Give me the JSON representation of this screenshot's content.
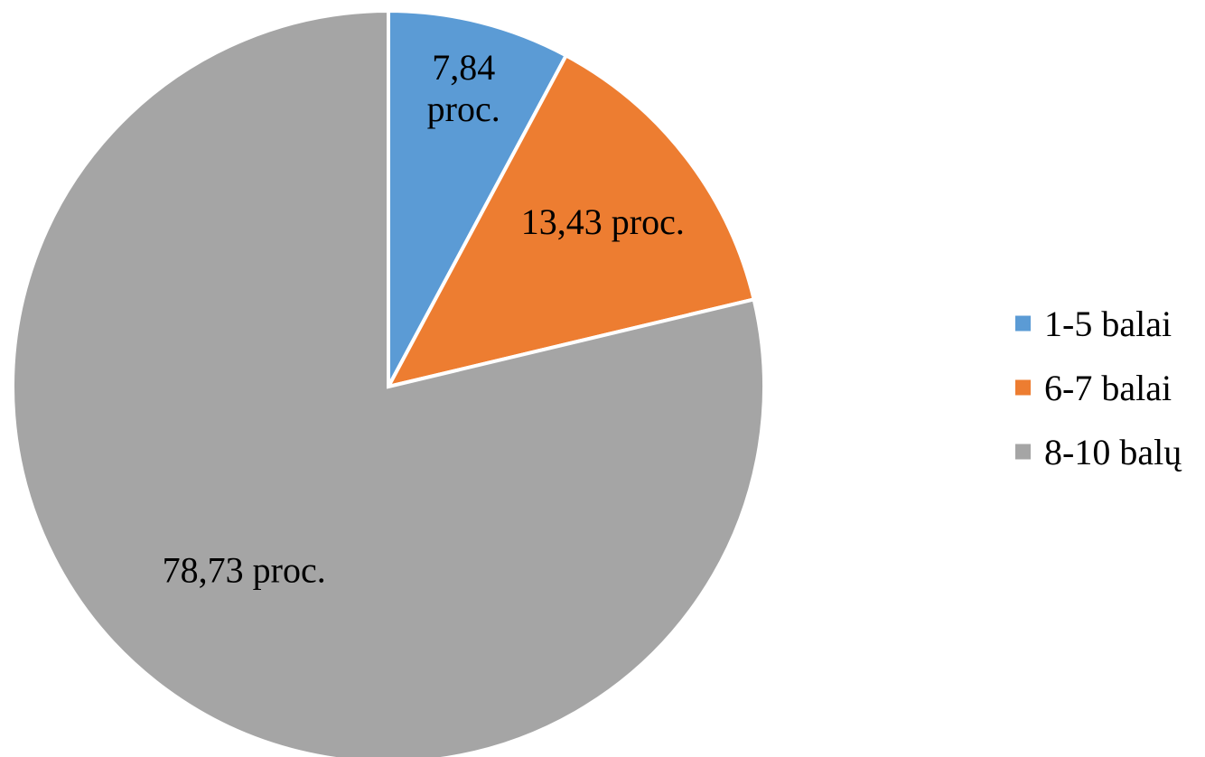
{
  "chart_data": {
    "type": "pie",
    "title": "",
    "legend_position": "right",
    "series": [
      {
        "name": "1-5 balai",
        "value": 7.84,
        "label_lines": [
          "7,84",
          "proc."
        ],
        "color": "#5b9bd5"
      },
      {
        "name": "6-7 balai",
        "value": 13.43,
        "label_lines": [
          "13,43 proc."
        ],
        "color": "#ed7d31"
      },
      {
        "name": "8-10 balų",
        "value": 78.73,
        "label_lines": [
          "78,73 proc."
        ],
        "color": "#a5a5a5"
      }
    ]
  }
}
